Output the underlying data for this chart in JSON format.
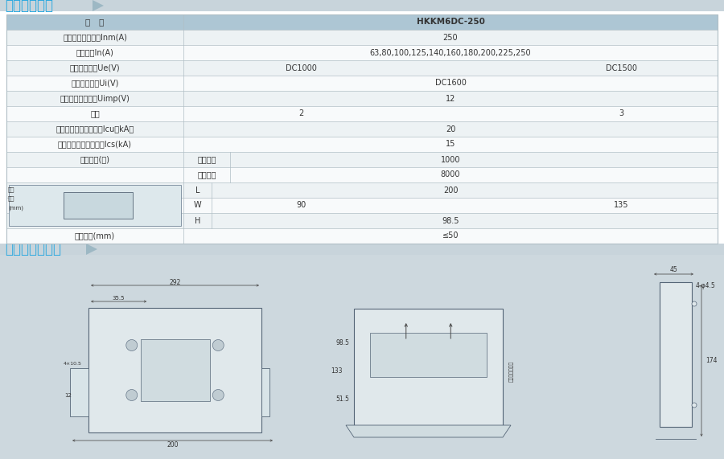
{
  "title1": "主要技术参数",
  "title2": "外形与安装尺寸",
  "title_color": "#29a8e0",
  "banner_color": "#c8d4db",
  "table_header_bg": "#adc6d4",
  "row_alt1": "#edf2f4",
  "row_alt2": "#f8fafb",
  "border_color": "#b0bec5",
  "text_dark": "#333333",
  "bottom_bg": "#cdd8de",
  "white": "#ffffff",
  "normal_rows": [
    {
      "label": "型   号",
      "type": "center",
      "v1": "HKKM6DC-250",
      "v2": "",
      "is_header": true
    },
    {
      "label": "壳架等级额定电流Inm(A)",
      "type": "center",
      "v1": "250",
      "v2": "",
      "is_header": false
    },
    {
      "label": "额定电流In(A)",
      "type": "center",
      "v1": "63,80,100,125,140,160,180,200,225,250",
      "v2": "",
      "is_header": false
    },
    {
      "label": "额定工作电压Ue(V)",
      "type": "split",
      "v1": "DC1000",
      "v2": "DC1500",
      "is_header": false
    },
    {
      "label": "额定绝缘电压Ui(V)",
      "type": "center",
      "v1": "DC1600",
      "v2": "",
      "is_header": false
    },
    {
      "label": "额定冲击耐受电压Uimp(V)",
      "type": "center",
      "v1": "12",
      "v2": "",
      "is_header": false
    },
    {
      "label": "极数",
      "type": "split",
      "v1": "2",
      "v2": "3",
      "is_header": false
    },
    {
      "label": "额定极限短路分断能力Icu（kA）",
      "type": "center",
      "v1": "20",
      "v2": "",
      "is_header": false
    },
    {
      "label": "额定运行短路分断能力Ics(kA)",
      "type": "center",
      "v1": "15",
      "v2": "",
      "is_header": false
    }
  ],
  "ops_rows": [
    {
      "sub": "电气寿命",
      "value": "1000"
    },
    {
      "sub": "机械寿命",
      "value": "8000"
    }
  ],
  "dim_rows": [
    {
      "sub": "L",
      "left": "",
      "center": "200",
      "right": ""
    },
    {
      "sub": "W",
      "left": "90",
      "center": "",
      "right": "135"
    },
    {
      "sub": "H",
      "left": "",
      "center": "98.5",
      "right": ""
    }
  ],
  "arc_val": "≤50",
  "arc_label": "飞弧距离(mm)"
}
